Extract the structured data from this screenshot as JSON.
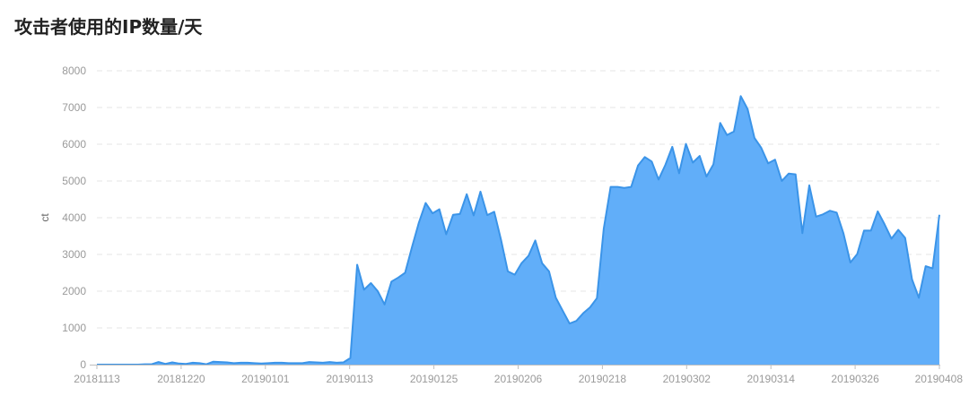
{
  "title": "攻击者使用的IP数量/天",
  "colors": {
    "fill": "#61aef9",
    "line": "#3b94e8",
    "grid": "#e4e4e4",
    "axis": "#bfbfbf"
  },
  "chart_data": {
    "type": "area",
    "title": "攻击者使用的IP数量/天",
    "xlabel": "",
    "ylabel": "ct",
    "ylim": [
      0,
      8000
    ],
    "yticks": [
      "0",
      "1000",
      "2000",
      "3000",
      "4000",
      "5000",
      "6000",
      "7000",
      "8000"
    ],
    "xticks": [
      "20181113",
      "20181220",
      "20190101",
      "20190113",
      "20190125",
      "20190206",
      "20190218",
      "20190302",
      "20190314",
      "20190326",
      "20190408"
    ],
    "grid": true,
    "legend": "none",
    "values": [
      0,
      0,
      0,
      0,
      0,
      0,
      0,
      10,
      10,
      70,
      20,
      60,
      30,
      20,
      50,
      40,
      10,
      80,
      70,
      60,
      40,
      50,
      50,
      40,
      30,
      40,
      50,
      50,
      40,
      40,
      40,
      70,
      60,
      50,
      70,
      50,
      60,
      180,
      2720,
      2040,
      2220,
      2000,
      1640,
      2260,
      2370,
      2500,
      3200,
      3860,
      4400,
      4120,
      4230,
      3550,
      4080,
      4100,
      4640,
      4060,
      4710,
      4070,
      4160,
      3400,
      2540,
      2450,
      2760,
      2960,
      3380,
      2760,
      2540,
      1820,
      1470,
      1120,
      1190,
      1400,
      1560,
      1810,
      3700,
      4840,
      4840,
      4810,
      4840,
      5420,
      5650,
      5530,
      5040,
      5440,
      5930,
      5210,
      6010,
      5500,
      5680,
      5120,
      5450,
      6580,
      6250,
      6350,
      7310,
      6960,
      6170,
      5900,
      5480,
      5580,
      5000,
      5200,
      5180,
      3580,
      4880,
      4030,
      4090,
      4190,
      4140,
      3570,
      2780,
      3010,
      3650,
      3650,
      4170,
      3820,
      3430,
      3670,
      3450,
      2320,
      1820,
      2680,
      2620,
      4080
    ]
  }
}
